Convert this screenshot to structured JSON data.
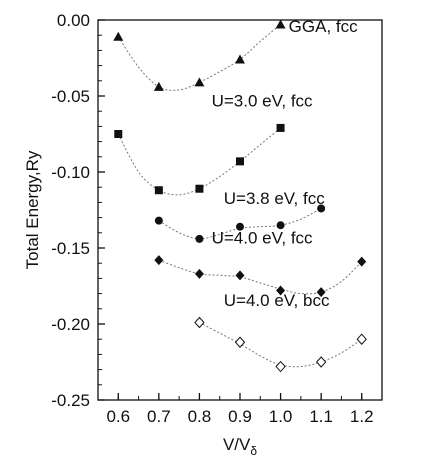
{
  "chart_data": {
    "type": "scatter",
    "title": "",
    "xlabel": "V/V",
    "xlabel_sub": "δ",
    "ylabel": "Total Energy,Ry",
    "xlim": [
      0.55,
      1.25
    ],
    "ylim": [
      -0.25,
      0.0
    ],
    "xticks": [
      "0.6",
      "0.7",
      "0.8",
      "0.9",
      "1.0",
      "1.1",
      "1.2"
    ],
    "yticks": [
      "0.00",
      "-0.05",
      "-0.10",
      "-0.15",
      "-0.20",
      "-0.25"
    ],
    "grid": false,
    "series": [
      {
        "name": "GGA, fcc",
        "marker": "triangle-filled",
        "x": [
          0.6,
          0.7,
          0.8,
          0.9,
          1.0
        ],
        "values": [
          -0.011,
          -0.044,
          -0.041,
          -0.026,
          -0.003
        ],
        "curve": [
          [
            0.6,
            -0.011
          ],
          [
            0.65,
            -0.031
          ],
          [
            0.7,
            -0.044
          ],
          [
            0.75,
            -0.046
          ],
          [
            0.8,
            -0.041
          ],
          [
            0.85,
            -0.034
          ],
          [
            0.9,
            -0.026
          ],
          [
            0.95,
            -0.014
          ],
          [
            1.0,
            -0.003
          ]
        ]
      },
      {
        "name": "U=3.0 eV, fcc",
        "marker": "square-filled",
        "x": [
          0.6,
          0.7,
          0.8,
          0.9,
          1.0
        ],
        "values": [
          -0.075,
          -0.112,
          -0.111,
          -0.093,
          -0.071
        ],
        "curve": [
          [
            0.6,
            -0.075
          ],
          [
            0.65,
            -0.1
          ],
          [
            0.7,
            -0.112
          ],
          [
            0.75,
            -0.115
          ],
          [
            0.8,
            -0.111
          ],
          [
            0.85,
            -0.103
          ],
          [
            0.9,
            -0.093
          ],
          [
            0.95,
            -0.082
          ],
          [
            1.0,
            -0.071
          ]
        ]
      },
      {
        "name": "U=3.8 eV, fcc",
        "marker": "circle-filled",
        "x": [
          0.7,
          0.8,
          0.9,
          1.0,
          1.1
        ],
        "values": [
          -0.132,
          -0.144,
          -0.136,
          -0.135,
          -0.124
        ],
        "curve": [
          [
            0.7,
            -0.132
          ],
          [
            0.75,
            -0.14
          ],
          [
            0.8,
            -0.144
          ],
          [
            0.85,
            -0.141
          ],
          [
            0.9,
            -0.137
          ],
          [
            0.95,
            -0.136
          ],
          [
            1.0,
            -0.135
          ],
          [
            1.05,
            -0.131
          ],
          [
            1.1,
            -0.124
          ]
        ]
      },
      {
        "name": "U=4.0 eV, fcc",
        "marker": "diamond-filled",
        "x": [
          0.7,
          0.8,
          0.9,
          1.0,
          1.1,
          1.2
        ],
        "values": [
          -0.158,
          -0.167,
          -0.168,
          -0.178,
          -0.179,
          -0.159
        ],
        "curve": [
          [
            0.7,
            -0.158
          ],
          [
            0.75,
            -0.163
          ],
          [
            0.8,
            -0.167
          ],
          [
            0.85,
            -0.168
          ],
          [
            0.9,
            -0.169
          ],
          [
            0.95,
            -0.173
          ],
          [
            1.0,
            -0.177
          ],
          [
            1.05,
            -0.18
          ],
          [
            1.1,
            -0.179
          ],
          [
            1.15,
            -0.172
          ],
          [
            1.2,
            -0.159
          ]
        ]
      },
      {
        "name": "U=4.0 eV, bcc",
        "marker": "diamond-open",
        "x": [
          0.8,
          0.9,
          1.0,
          1.1,
          1.2
        ],
        "values": [
          -0.199,
          -0.212,
          -0.228,
          -0.225,
          -0.21
        ],
        "curve": [
          [
            0.8,
            -0.199
          ],
          [
            0.85,
            -0.206
          ],
          [
            0.9,
            -0.213
          ],
          [
            0.95,
            -0.221
          ],
          [
            1.0,
            -0.227
          ],
          [
            1.05,
            -0.228
          ],
          [
            1.1,
            -0.225
          ],
          [
            1.15,
            -0.219
          ],
          [
            1.2,
            -0.21
          ]
        ]
      }
    ]
  }
}
